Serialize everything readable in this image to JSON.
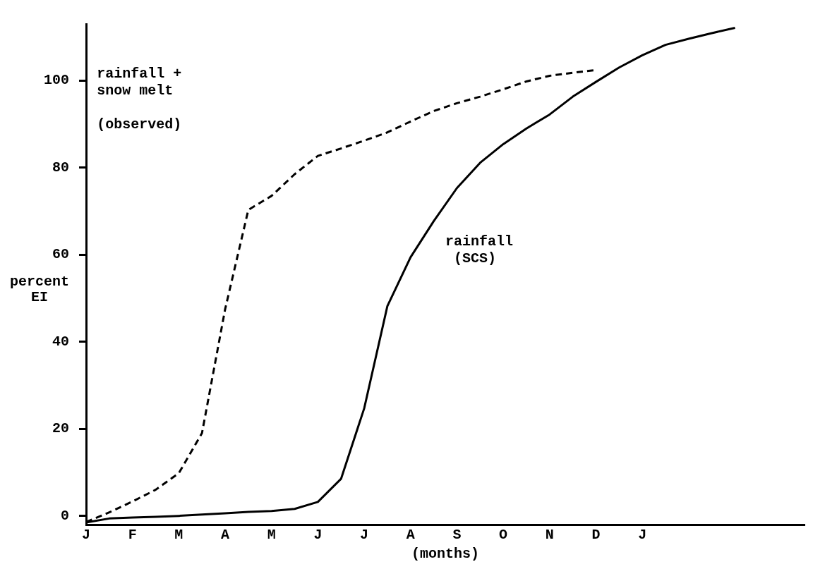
{
  "chart_data": {
    "type": "line",
    "xlabel": "(months)",
    "ylabel": "percent\nEI",
    "categories": [
      "J",
      null,
      "F",
      null,
      "M",
      null,
      "A",
      null,
      "M",
      null,
      "J",
      null,
      "J",
      null,
      "A",
      null,
      "S",
      null,
      "O",
      null,
      "N",
      null,
      "D",
      null,
      "J",
      null,
      null,
      null,
      null,
      null,
      null,
      null
    ],
    "ylim": [
      -2,
      113
    ],
    "yticks": [
      0,
      20,
      40,
      60,
      80,
      100
    ],
    "grid": false,
    "legend": false,
    "marker": "none",
    "series": [
      {
        "color": "#000000",
        "line_style": "dashed",
        "values": [
          -1.4,
          0.8,
          3.3,
          6.0,
          9.8,
          19,
          47.5,
          70.3,
          73.5,
          78.5,
          82.7,
          84.4,
          86.2,
          88.1,
          90.6,
          93,
          94.8,
          96.3,
          98,
          99.8,
          101.1,
          101.8,
          102.4,
          null,
          null,
          null,
          null,
          null,
          null,
          null,
          null,
          null
        ]
      },
      {
        "color": "#000000",
        "line_style": "solid",
        "values": [
          -1.5,
          -0.6,
          -0.4,
          -0.2,
          0,
          0.3,
          0.6,
          0.9,
          1.1,
          1.6,
          3.2,
          8.5,
          24.7,
          48.2,
          59.4,
          67.7,
          75.3,
          81.1,
          85.4,
          89,
          92.2,
          96.3,
          99.7,
          103,
          105.8,
          108.2,
          109.6,
          110.9,
          112.1,
          null,
          null,
          null
        ]
      }
    ],
    "annotations": [
      "rainfall +\nsnow melt\n\n(observed)",
      "rainfall\n (SCS)"
    ]
  }
}
